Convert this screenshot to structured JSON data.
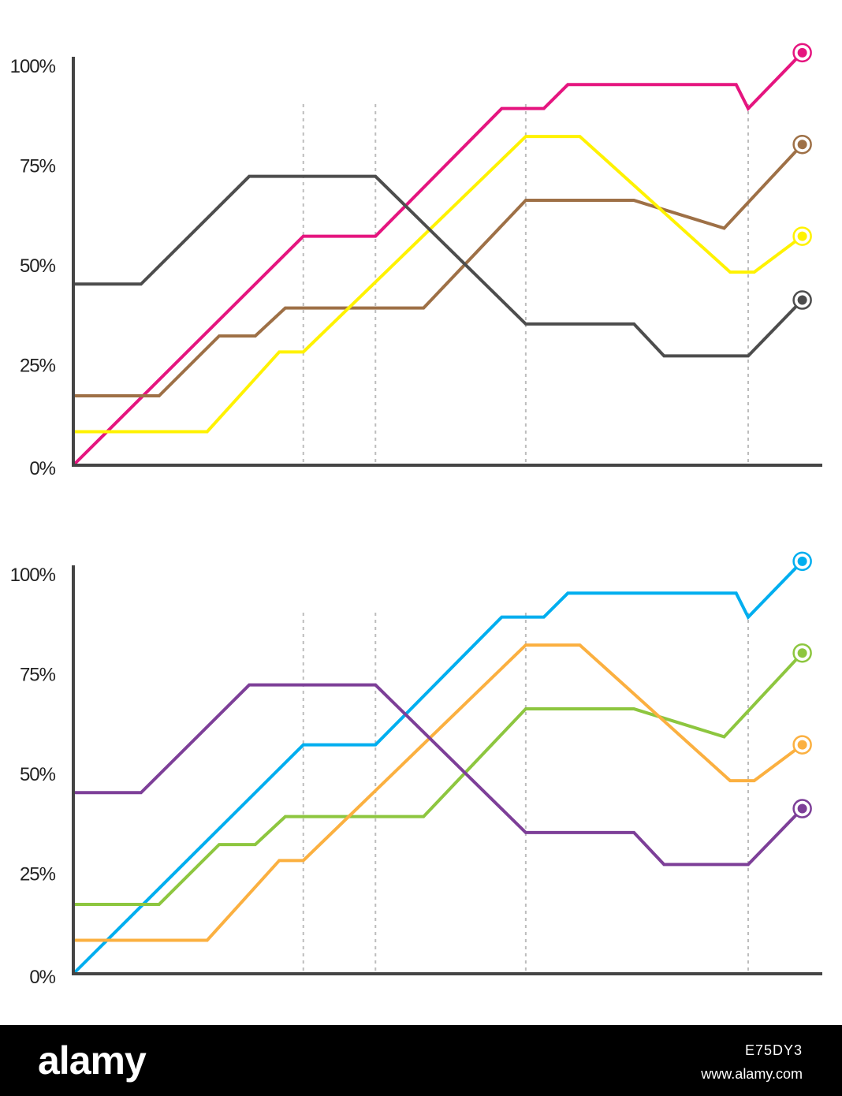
{
  "chart_data": [
    {
      "type": "line",
      "yticks": [
        "0%",
        "25%",
        "50%",
        "75%",
        "100%"
      ],
      "ylim": [
        0,
        100
      ],
      "xlim": [
        0,
        12
      ],
      "grid": false,
      "reference_x": [
        3.8,
        5,
        7.5,
        11.2
      ],
      "series": [
        {
          "color": "#e5157f",
          "x": [
            0,
            3.8,
            5,
            7.1,
            7.8,
            8.2,
            11,
            11.2,
            12.1
          ],
          "y": [
            0,
            57,
            57,
            89,
            89,
            95,
            95,
            89,
            103
          ]
        },
        {
          "color": "#9e7046",
          "x": [
            0,
            1.4,
            2.4,
            3,
            3.5,
            5.8,
            7.5,
            9.3,
            10.8,
            12.1
          ],
          "y": [
            17,
            17,
            32,
            32,
            39,
            39,
            66,
            66,
            59,
            80
          ]
        },
        {
          "color": "#fff200",
          "x": [
            0,
            2.2,
            3.4,
            3.8,
            7.5,
            8.4,
            10.9,
            11.3,
            12.1
          ],
          "y": [
            8,
            8,
            28,
            28,
            82,
            82,
            48,
            48,
            57
          ]
        },
        {
          "color": "#4d4d4d",
          "x": [
            0,
            1.1,
            2.9,
            5,
            7.5,
            9.3,
            9.8,
            11.2,
            12.1
          ],
          "y": [
            45,
            45,
            72,
            72,
            35,
            35,
            27,
            27,
            41
          ]
        }
      ]
    },
    {
      "type": "line",
      "yticks": [
        "0%",
        "25%",
        "50%",
        "75%",
        "100%"
      ],
      "ylim": [
        0,
        100
      ],
      "xlim": [
        0,
        12
      ],
      "grid": false,
      "reference_x": [
        3.8,
        5,
        7.5,
        11.2
      ],
      "series": [
        {
          "color": "#00aeef",
          "x": [
            0,
            3.8,
            5,
            7.1,
            7.8,
            8.2,
            11,
            11.2,
            12.1
          ],
          "y": [
            0,
            57,
            57,
            89,
            89,
            95,
            95,
            89,
            103
          ]
        },
        {
          "color": "#8dc63f",
          "x": [
            0,
            1.4,
            2.4,
            3,
            3.5,
            5.8,
            7.5,
            9.3,
            10.8,
            12.1
          ],
          "y": [
            17,
            17,
            32,
            32,
            39,
            39,
            66,
            66,
            59,
            80
          ]
        },
        {
          "color": "#fbb040",
          "x": [
            0,
            2.2,
            3.4,
            3.8,
            7.5,
            8.4,
            10.9,
            11.3,
            12.1
          ],
          "y": [
            8,
            8,
            28,
            28,
            82,
            82,
            48,
            48,
            57
          ]
        },
        {
          "color": "#7d3f98",
          "x": [
            0,
            1.1,
            2.9,
            5,
            7.5,
            9.3,
            9.8,
            11.2,
            12.1
          ],
          "y": [
            45,
            45,
            72,
            72,
            35,
            35,
            27,
            27,
            41
          ]
        }
      ]
    }
  ],
  "footer": {
    "brand": "alamy",
    "image_id": "E75DY3",
    "site": "www.alamy.com"
  }
}
